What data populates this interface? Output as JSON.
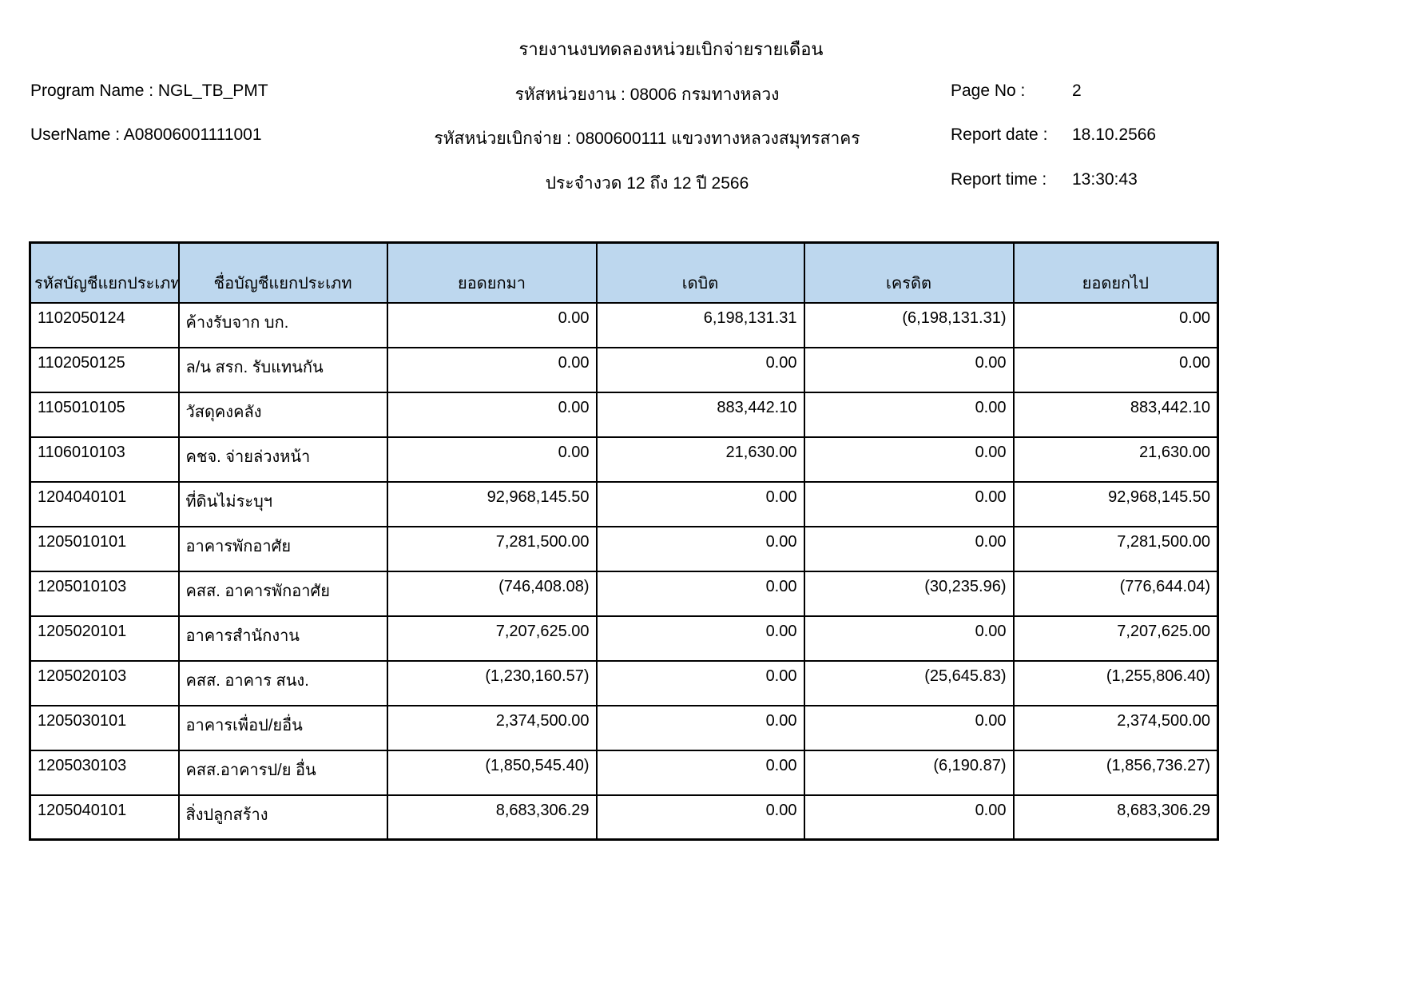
{
  "header": {
    "title": "รายงานงบทดลองหน่วยเบิกจ่ายรายเดือน",
    "left": {
      "program_line": "Program Name : NGL_TB_PMT",
      "user_line": "UserName : A08006001111001"
    },
    "center": {
      "agency_line": "รหัสหน่วยงาน : 08006 กรมทางหลวง",
      "disbursement_unit_line": "รหัสหน่วยเบิกจ่าย : 0800600111 แขวงทางหลวงสมุทรสาคร",
      "period_line": "ประจำงวด 12 ถึง 12 ปี 2566"
    },
    "right": {
      "page_label": "Page No :",
      "page_value": "2",
      "date_label": "Report date :",
      "date_value": "18.10.2566",
      "time_label": "Report time :",
      "time_value": "13:30:43"
    }
  },
  "table": {
    "columns": [
      "รหัสบัญชีแยกประเภท",
      "ชื่อบัญชีแยกประเภท",
      "ยอดยกมา",
      "เดบิต",
      "เครดิต",
      "ยอดยกไป"
    ],
    "rows": [
      [
        "1102050124",
        "ค้างรับจาก บก.",
        "0.00",
        "6,198,131.31",
        "(6,198,131.31)",
        "0.00"
      ],
      [
        "1102050125",
        "ล/น สรก. รับแทนกัน",
        "0.00",
        "0.00",
        "0.00",
        "0.00"
      ],
      [
        "1105010105",
        "วัสดุคงคลัง",
        "0.00",
        "883,442.10",
        "0.00",
        "883,442.10"
      ],
      [
        "1106010103",
        "คชจ. จ่ายล่วงหน้า",
        "0.00",
        "21,630.00",
        "0.00",
        "21,630.00"
      ],
      [
        "1204040101",
        "ที่ดินไม่ระบุฯ",
        "92,968,145.50",
        "0.00",
        "0.00",
        "92,968,145.50"
      ],
      [
        "1205010101",
        "อาคารพักอาศัย",
        "7,281,500.00",
        "0.00",
        "0.00",
        "7,281,500.00"
      ],
      [
        "1205010103",
        "คสส. อาคารพักอาศัย",
        "(746,408.08)",
        "0.00",
        "(30,235.96)",
        "(776,644.04)"
      ],
      [
        "1205020101",
        "อาคารสำนักงาน",
        "7,207,625.00",
        "0.00",
        "0.00",
        "7,207,625.00"
      ],
      [
        "1205020103",
        "คสส. อาคาร สนง.",
        "(1,230,160.57)",
        "0.00",
        "(25,645.83)",
        "(1,255,806.40)"
      ],
      [
        "1205030101",
        "อาคารเพื่อป/ยอื่น",
        "2,374,500.00",
        "0.00",
        "0.00",
        "2,374,500.00"
      ],
      [
        "1205030103",
        "คสส.อาคารป/ย อื่น",
        "(1,850,545.40)",
        "0.00",
        "(6,190.87)",
        "(1,856,736.27)"
      ],
      [
        "1205040101",
        "สิ่งปลูกสร้าง",
        "8,683,306.29",
        "0.00",
        "0.00",
        "8,683,306.29"
      ]
    ]
  },
  "colors": {
    "table_header_bg": "#BDD7EE",
    "border": "#000000",
    "page_bg": "#FFFFFF"
  }
}
